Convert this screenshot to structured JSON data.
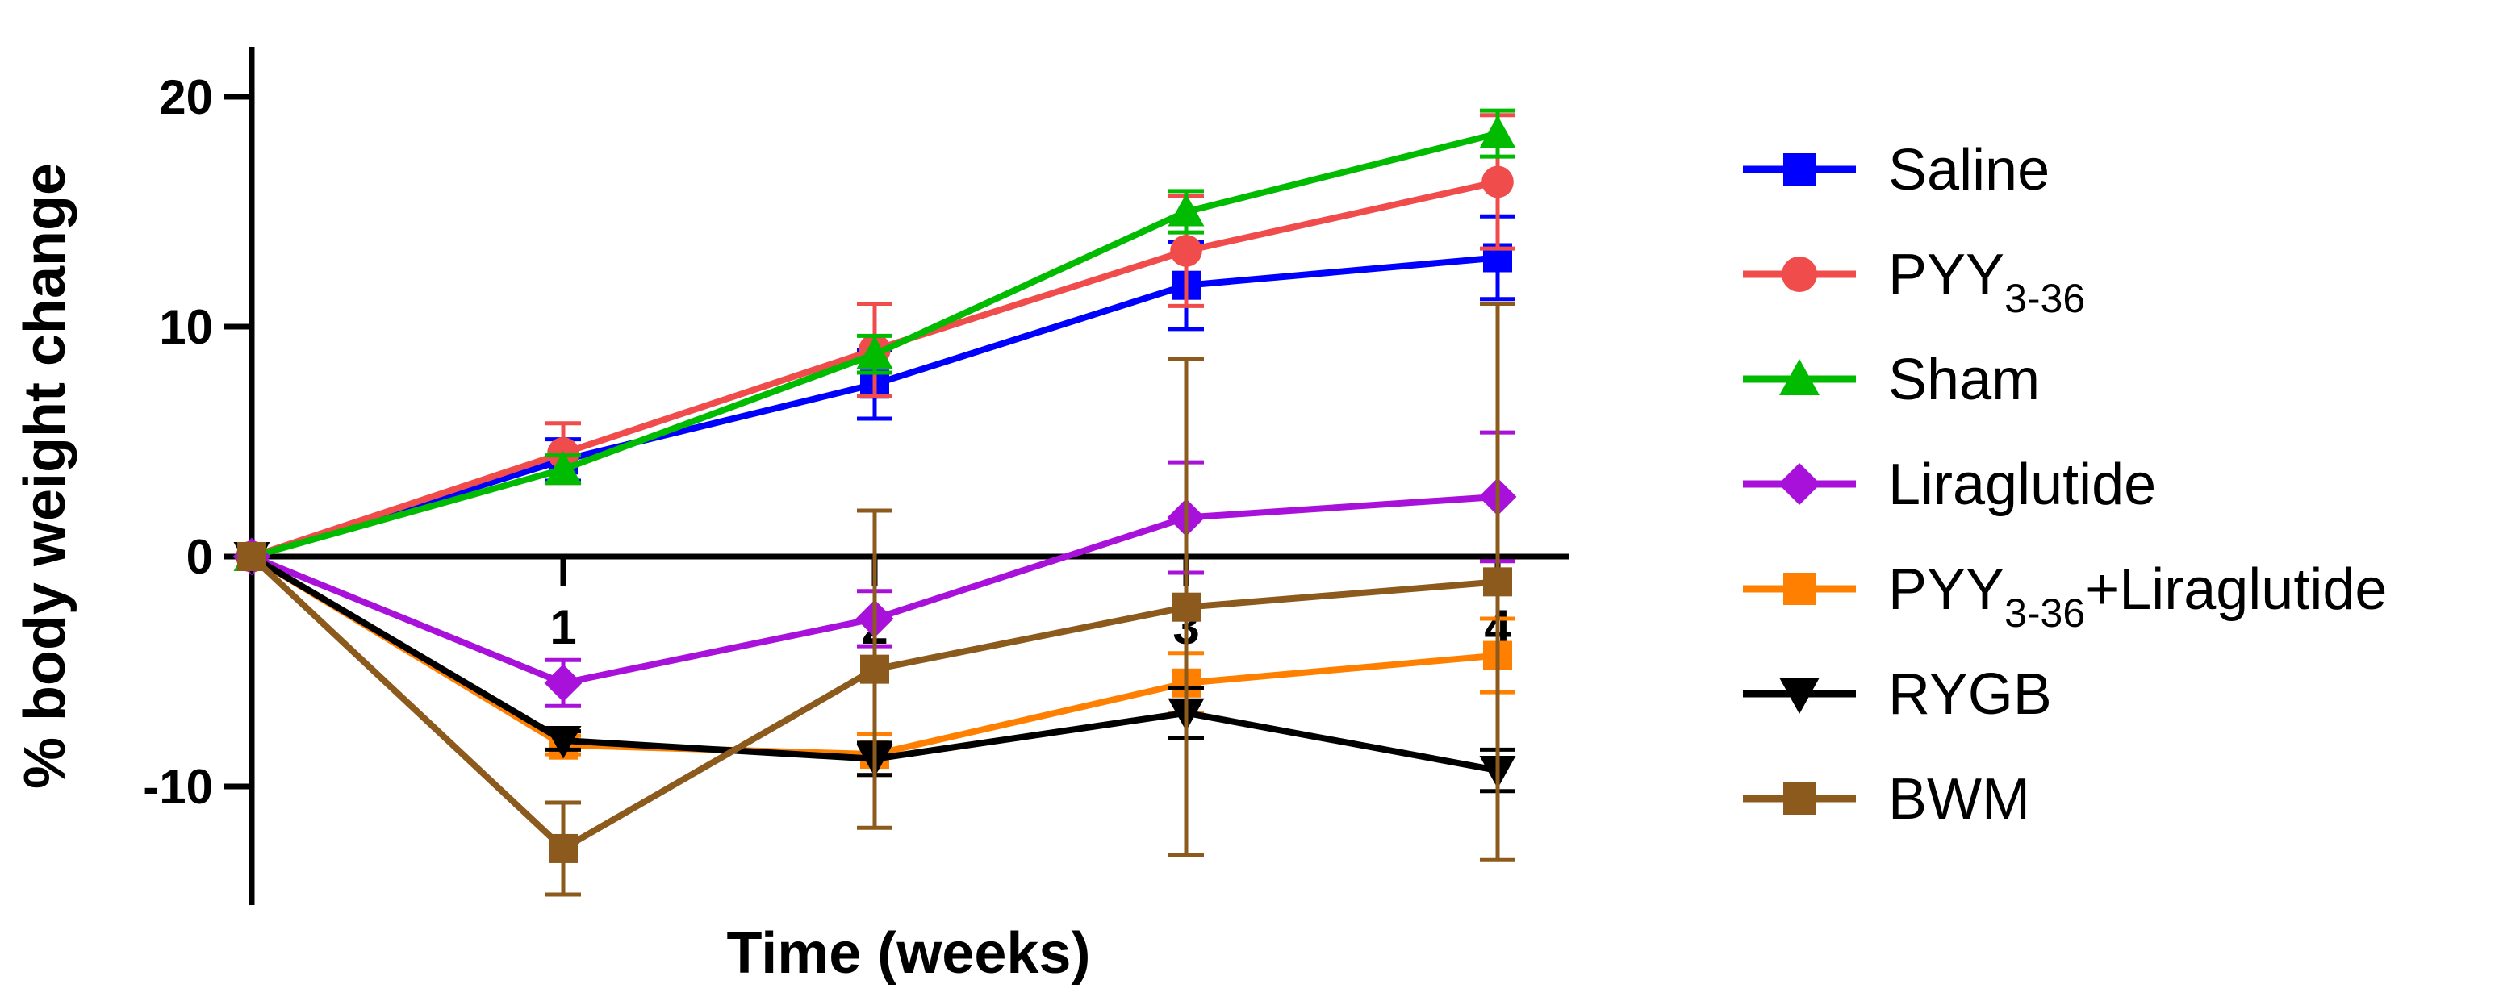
{
  "chart_data": {
    "type": "line",
    "title": "",
    "xlabel": "Time (weeks)",
    "ylabel": "% body weight change",
    "x": [
      0,
      1,
      2,
      3,
      4
    ],
    "x_tick_labels": [
      "1",
      "2",
      "3",
      "4"
    ],
    "y_ticks": [
      -10,
      0,
      10,
      20
    ],
    "y_tick_labels": [
      "-10",
      "0",
      "10",
      "20"
    ],
    "ylim": [
      -15,
      22
    ],
    "xlim": [
      0,
      4.2
    ],
    "legend_position": "right",
    "series": [
      {
        "name": "Saline",
        "label_main": "Saline",
        "label_sub": "",
        "label_suffix": "",
        "color": "#0000ff",
        "marker": "square",
        "values": [
          0,
          4.2,
          7.5,
          11.8,
          13.0
        ],
        "errors": [
          0,
          0.9,
          1.5,
          1.9,
          1.8
        ]
      },
      {
        "name": "PYY3-36",
        "label_main": "PYY",
        "label_sub": "3-36",
        "label_suffix": "",
        "color": "#f04c4c",
        "marker": "circle",
        "values": [
          0,
          4.5,
          9.0,
          13.3,
          16.3
        ],
        "errors": [
          0,
          1.3,
          2.0,
          2.4,
          2.9
        ]
      },
      {
        "name": "Sham",
        "label_main": "Sham",
        "label_sub": "",
        "label_suffix": "",
        "color": "#00bb00",
        "marker": "triangle-up",
        "values": [
          0,
          3.8,
          8.8,
          15.0,
          18.4
        ],
        "errors": [
          0,
          0.6,
          0.8,
          0.9,
          1.0
        ]
      },
      {
        "name": "Liraglutide",
        "label_main": "Liraglutide",
        "label_sub": "",
        "label_suffix": "",
        "color": "#a811d9",
        "marker": "diamond",
        "values": [
          0,
          -5.5,
          -2.7,
          1.7,
          2.6
        ],
        "errors": [
          0,
          1.0,
          1.2,
          2.4,
          2.8
        ]
      },
      {
        "name": "PYY3-36+Liraglutide",
        "label_main": "PYY",
        "label_sub": "3-36",
        "label_suffix": "+Liraglutide",
        "color": "#ff8000",
        "marker": "square",
        "values": [
          0,
          -8.2,
          -8.6,
          -5.5,
          -4.3
        ],
        "errors": [
          0,
          0.4,
          0.9,
          1.3,
          1.6
        ]
      },
      {
        "name": "RYGB",
        "label_main": "RYGB",
        "label_sub": "",
        "label_suffix": "",
        "color": "#000000",
        "marker": "triangle-down",
        "values": [
          0,
          -8.0,
          -8.8,
          -6.8,
          -9.3
        ],
        "errors": [
          0,
          0.4,
          0.7,
          1.1,
          0.9
        ]
      },
      {
        "name": "BWM",
        "label_main": "BWM",
        "label_sub": "",
        "label_suffix": "",
        "color": "#8b5a1c",
        "marker": "square",
        "values": [
          0,
          -12.7,
          -4.9,
          -2.2,
          -1.1
        ],
        "errors": [
          0,
          2.0,
          6.9,
          10.8,
          12.1
        ]
      }
    ]
  }
}
